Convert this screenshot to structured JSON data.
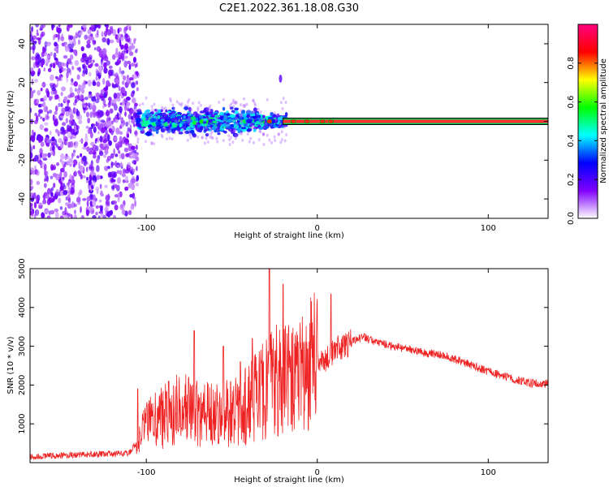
{
  "title": "C2E1.2022.361.18.08.G30",
  "chart_data": [
    {
      "type": "heatmap",
      "title": "",
      "xlabel": "Height of straight line (km)",
      "ylabel": "Frequency (Hz)",
      "xlim": [
        -168,
        135
      ],
      "ylim": [
        -50,
        50
      ],
      "xticks": [
        -100,
        0,
        100
      ],
      "yticks": [
        -40,
        -20,
        0,
        20,
        40
      ],
      "colorbar": {
        "label": "Normalized spectral amplitude",
        "range": [
          0,
          1
        ],
        "ticks": [
          0.0,
          0.2,
          0.4,
          0.6,
          0.8
        ],
        "colormap": [
          "#ffffff",
          "#8000ff",
          "#0000ff",
          "#00ffff",
          "#00ff00",
          "#ffff00",
          "#ff0000",
          "#ff0080"
        ]
      },
      "regions": [
        {
          "name": "noise",
          "x": [
            -168,
            -105
          ],
          "freq": [
            -50,
            50
          ],
          "amplitude": [
            0.05,
            0.2
          ]
        },
        {
          "name": "broad signal",
          "x": [
            -105,
            -18
          ],
          "freq": [
            -8,
            8
          ],
          "amplitude": [
            0.2,
            0.6
          ]
        },
        {
          "name": "spike",
          "x": [
            -22,
            -21
          ],
          "freq": [
            20,
            24
          ],
          "amplitude": [
            0.1,
            0.2
          ]
        },
        {
          "name": "narrow carrier",
          "x": [
            -20,
            135
          ],
          "freq": [
            0,
            0
          ],
          "amplitude": [
            0.7,
            0.9
          ]
        }
      ]
    },
    {
      "type": "line",
      "title": "",
      "xlabel": "Height of straight line (km)",
      "ylabel": "SNR (10 * v/v)",
      "xlim": [
        -168,
        135
      ],
      "ylim": [
        0,
        5000
      ],
      "xticks": [
        -100,
        0,
        100
      ],
      "yticks": [
        1000,
        2000,
        3000,
        4000,
        5000
      ],
      "series": [
        {
          "color": "#ee2222",
          "points": [
            [
              -168,
              150
            ],
            [
              -140,
              200
            ],
            [
              -110,
              250
            ],
            [
              -106,
              500
            ],
            [
              -100,
              900
            ],
            [
              -90,
              1100
            ],
            [
              -80,
              1300
            ],
            [
              -70,
              1200
            ],
            [
              -60,
              1100
            ],
            [
              -50,
              1200
            ],
            [
              -40,
              1400
            ],
            [
              -30,
              1800
            ],
            [
              -25,
              2100
            ],
            [
              -20,
              1900
            ],
            [
              -10,
              2200
            ],
            [
              -5,
              2300
            ],
            [
              0,
              2500
            ],
            [
              5,
              2600
            ],
            [
              10,
              2900
            ],
            [
              20,
              3100
            ],
            [
              27,
              3250
            ],
            [
              35,
              3100
            ],
            [
              50,
              2950
            ],
            [
              60,
              2850
            ],
            [
              75,
              2750
            ],
            [
              85,
              2600
            ],
            [
              100,
              2350
            ],
            [
              115,
              2150
            ],
            [
              125,
              2050
            ],
            [
              135,
              2050
            ]
          ],
          "peaks": [
            [
              -105,
              1900
            ],
            [
              -87,
              2100
            ],
            [
              -72,
              3400
            ],
            [
              -55,
              3000
            ],
            [
              -45,
              2600
            ],
            [
              -38,
              3200
            ],
            [
              -28,
              5000
            ],
            [
              -20,
              4600
            ],
            [
              8,
              4350
            ]
          ]
        }
      ]
    }
  ]
}
